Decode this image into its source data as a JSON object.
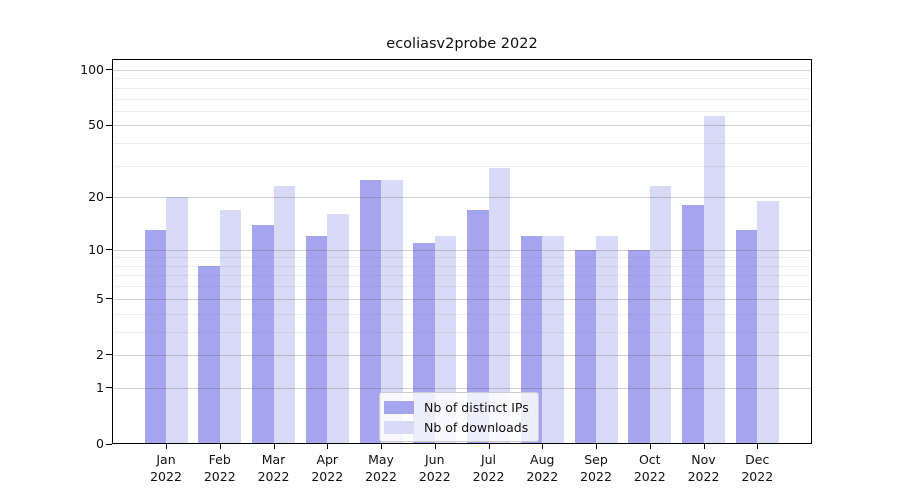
{
  "title": "ecoliasv2probe 2022",
  "chart_data": {
    "type": "bar",
    "title": "ecoliasv2probe 2022",
    "categories": [
      "Jan",
      "Feb",
      "Mar",
      "Apr",
      "May",
      "Jun",
      "Jul",
      "Aug",
      "Sep",
      "Oct",
      "Nov",
      "Dec"
    ],
    "category_year": "2022",
    "series": [
      {
        "name": "Nb of distinct IPs",
        "color": "#a5a5ef",
        "values": [
          13,
          8,
          14,
          12,
          25,
          11,
          17,
          12,
          10,
          10,
          18,
          13
        ]
      },
      {
        "name": "Nb of downloads",
        "color": "#d9d9f8",
        "values": [
          20,
          17,
          23,
          16,
          25,
          12,
          29,
          12,
          12,
          23,
          56,
          19
        ]
      }
    ],
    "yscale": "log1p",
    "ylim": [
      0,
      115
    ],
    "yticks": [
      0,
      1,
      2,
      5,
      10,
      20,
      50,
      100
    ],
    "yticks_minor": [
      3,
      4,
      6,
      7,
      8,
      9,
      30,
      40,
      60,
      70,
      80,
      90
    ],
    "grid": "horizontal",
    "legend_position": "lower center"
  }
}
